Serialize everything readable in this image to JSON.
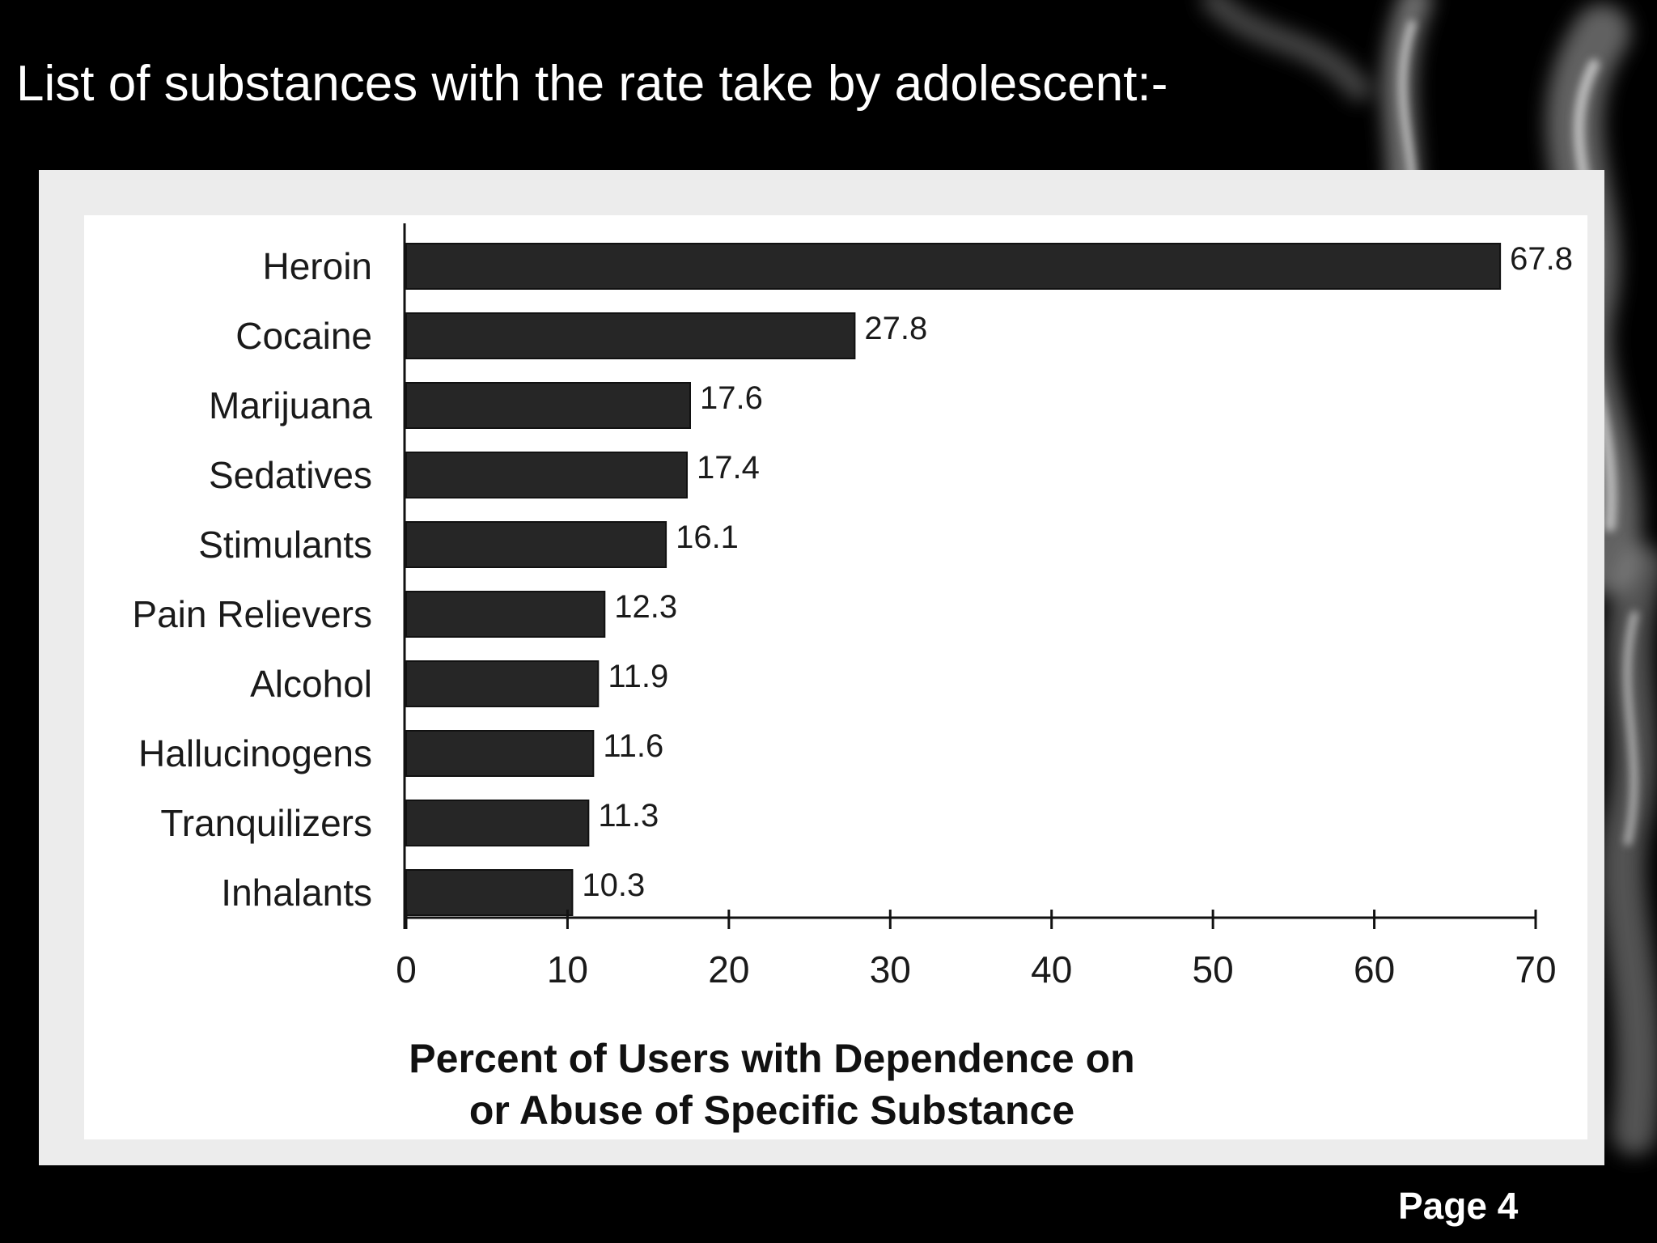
{
  "slide": {
    "title": "List of substances with the rate take by adolescent:-",
    "page_label": "Page 4"
  },
  "colors": {
    "background": "#000000",
    "bar": "#262626",
    "frame": "#ececec",
    "plot": "#ffffff"
  },
  "chart_data": {
    "type": "bar",
    "orientation": "horizontal",
    "categories": [
      "Heroin",
      "Cocaine",
      "Marijuana",
      "Sedatives",
      "Stimulants",
      "Pain Relievers",
      "Alcohol",
      "Hallucinogens",
      "Tranquilizers",
      "Inhalants"
    ],
    "values": [
      67.8,
      27.8,
      17.6,
      17.4,
      16.1,
      12.3,
      11.9,
      11.6,
      11.3,
      10.3
    ],
    "data_labels": [
      "67.8",
      "27.8",
      "17.6",
      "17.4",
      "16.1",
      "12.3",
      "11.9",
      "11.6",
      "11.3",
      "10.3"
    ],
    "xlabel_lines": [
      "Percent of Users with Dependence on",
      "or Abuse of Specific Substance"
    ],
    "ylabel": "",
    "xlim": [
      0,
      70
    ],
    "xticks": [
      0,
      10,
      20,
      30,
      40,
      50,
      60,
      70
    ],
    "grid": false,
    "legend": "none"
  }
}
